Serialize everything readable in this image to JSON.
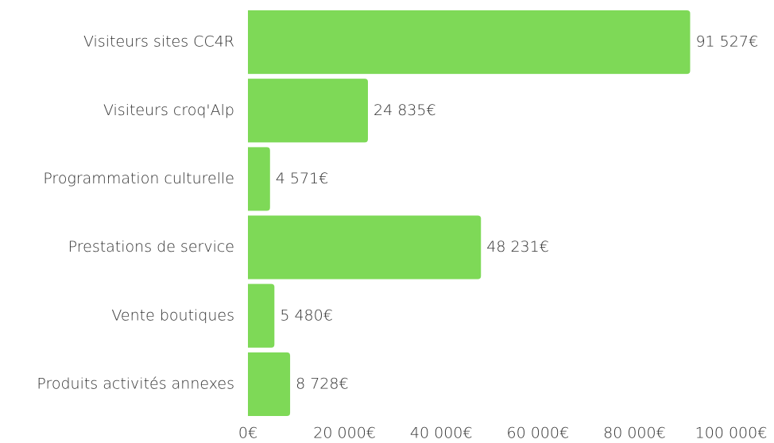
{
  "chart_data": {
    "type": "bar",
    "orientation": "horizontal",
    "color": "#7ed957",
    "categories": [
      "Visiteurs sites CC4R",
      "Visiteurs croq'Alp",
      "Programmation culturelle",
      "Prestations de service",
      "Vente boutiques",
      "Produits activités annexes"
    ],
    "values": [
      91527,
      24835,
      4571,
      48231,
      5480,
      8728
    ],
    "value_labels": [
      "91 527€",
      "24 835€",
      "4 571€",
      "48 231€",
      "5 480€",
      "8 728€"
    ],
    "xlim": [
      0,
      100000
    ],
    "xticks": [
      {
        "value": 0,
        "label": "0€"
      },
      {
        "value": 20000,
        "label": "20 000€"
      },
      {
        "value": 40000,
        "label": "40 000€"
      },
      {
        "value": 60000,
        "label": "60 000€"
      },
      {
        "value": 80000,
        "label": "80 000€"
      },
      {
        "value": 100000,
        "label": "100 000€"
      }
    ],
    "grid": false
  }
}
